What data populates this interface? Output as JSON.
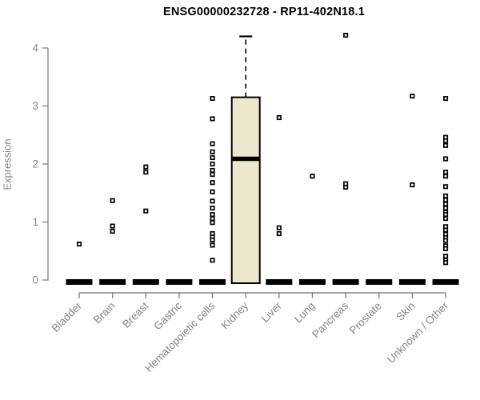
{
  "chart_data": {
    "type": "boxplot",
    "title": "ENSG00000232728 - RP11-402N18.1",
    "ylabel": "Expression",
    "ylim": [
      0,
      4
    ],
    "yticks": [
      0,
      1,
      2,
      3,
      4
    ],
    "grid": false,
    "legend": "none",
    "categories": [
      "Bladder",
      "Brain",
      "Breast",
      "Gastric",
      "Hematopoietic cells",
      "Kidney",
      "Liver",
      "Lung",
      "Pancreas",
      "Prostate",
      "Skin",
      "Unknown / Other"
    ],
    "series": [
      {
        "name": "Bladder",
        "box": {
          "low": 0,
          "q1": 0,
          "median": 0,
          "q3": 0,
          "high": 0
        },
        "points": [
          0.62
        ]
      },
      {
        "name": "Brain",
        "box": {
          "low": 0,
          "q1": 0,
          "median": 0,
          "q3": 0,
          "high": 0
        },
        "points": [
          1.37,
          0.93,
          0.84
        ]
      },
      {
        "name": "Breast",
        "box": {
          "low": 0,
          "q1": 0,
          "median": 0,
          "q3": 0,
          "high": 0
        },
        "points": [
          1.95,
          1.86,
          1.19
        ]
      },
      {
        "name": "Gastric",
        "box": {
          "low": 0,
          "q1": 0,
          "median": 0,
          "q3": 0,
          "high": 0
        },
        "points": []
      },
      {
        "name": "Hematopoietic cells",
        "box": {
          "low": 0,
          "q1": 0,
          "median": 0,
          "q3": 0,
          "high": 0
        },
        "points": [
          3.13,
          2.78,
          2.35,
          2.21,
          2.11,
          2.0,
          1.89,
          1.82,
          1.68,
          1.52,
          1.36,
          1.24,
          1.13,
          1.06,
          0.99,
          0.8,
          0.74,
          0.69,
          0.6,
          0.34
        ]
      },
      {
        "name": "Kidney",
        "box": {
          "low": 0,
          "q1": 0,
          "median": 2.09,
          "q3": 3.15,
          "high": 4.2
        },
        "points": []
      },
      {
        "name": "Liver",
        "box": {
          "low": 0,
          "q1": 0,
          "median": 0,
          "q3": 0,
          "high": 0
        },
        "points": [
          2.8,
          0.9,
          0.8
        ]
      },
      {
        "name": "Lung",
        "box": {
          "low": 0,
          "q1": 0,
          "median": 0,
          "q3": 0,
          "high": 0
        },
        "points": [
          1.79
        ]
      },
      {
        "name": "Pancreas",
        "box": {
          "low": 0,
          "q1": 0,
          "median": 0,
          "q3": 0,
          "high": 0
        },
        "points": [
          4.22,
          1.66,
          1.6
        ]
      },
      {
        "name": "Prostate",
        "box": {
          "low": 0,
          "q1": 0,
          "median": 0,
          "q3": 0,
          "high": 0
        },
        "points": []
      },
      {
        "name": "Skin",
        "box": {
          "low": 0,
          "q1": 0,
          "median": 0,
          "q3": 0,
          "high": 0
        },
        "points": [
          3.17,
          1.64
        ]
      },
      {
        "name": "Unknown / Other",
        "box": {
          "low": 0,
          "q1": 0,
          "median": 0,
          "q3": 0,
          "high": 0
        },
        "points": [
          3.13,
          2.46,
          2.4,
          2.32,
          2.09,
          1.86,
          1.79,
          1.61,
          1.45,
          1.38,
          1.31,
          1.24,
          1.17,
          1.13,
          1.06,
          0.92,
          0.86,
          0.79,
          0.73,
          0.68,
          0.59,
          0.54,
          0.41,
          0.34,
          0.3
        ]
      }
    ],
    "style": {
      "box_fill": "#ede8cd",
      "box_stroke": "#000000",
      "median_color": "#000000",
      "flat_box_color": "#000000",
      "axis_color": "#858585",
      "tick_label_color": "#858585",
      "point_stroke": "#000000",
      "point_fill": "#ffffff",
      "title_color": "#000000",
      "background": "#ffffff"
    }
  }
}
